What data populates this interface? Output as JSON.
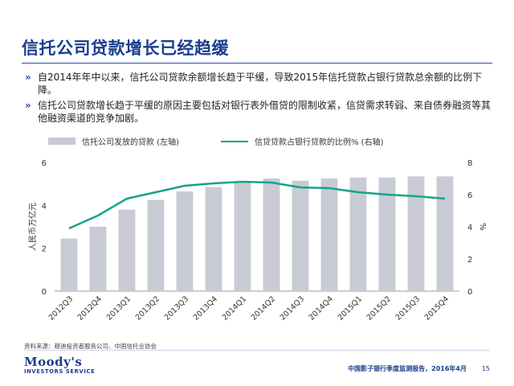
{
  "header": {
    "title": "信托公司贷款增长已经趋缓"
  },
  "bullets": [
    {
      "mark": "»",
      "text": "自2014年年中以来，信托公司贷款余额增长趋于平缓，导致2015年信托贷款占银行贷款总余额的比例下降。"
    },
    {
      "mark": "»",
      "text": "信托公司贷款增长趋于平缓的原因主要包括对银行表外借贷的限制收紧，信贷需求转弱、来自债券融资等其他融资渠道的竞争加剧。"
    }
  ],
  "legend": {
    "bar_label": "信托公司发放的贷款 (左轴)",
    "line_label": "信贷贷款占银行贷款的比例% (右轴)"
  },
  "chart_data": {
    "type": "bar+line",
    "categories": [
      "2012Q3",
      "2012Q4",
      "2013Q1",
      "2013Q2",
      "2013Q3",
      "2013Q4",
      "2014Q1",
      "2014Q2",
      "2014Q3",
      "2014Q4",
      "2015Q1",
      "2015Q2",
      "2015Q3",
      "2015Q4"
    ],
    "series": [
      {
        "name": "信托公司发放的贷款 (左轴)",
        "type": "bar",
        "axis": "left",
        "values": [
          2.45,
          3.0,
          3.8,
          4.25,
          4.65,
          4.85,
          5.1,
          5.25,
          5.15,
          5.25,
          5.3,
          5.3,
          5.35,
          5.35
        ]
      },
      {
        "name": "信贷贷款占银行贷款的比例% (右轴)",
        "type": "line",
        "axis": "right",
        "values": [
          3.9,
          4.7,
          5.75,
          6.15,
          6.55,
          6.7,
          6.8,
          6.75,
          6.45,
          6.4,
          6.15,
          6.0,
          5.9,
          5.75
        ]
      }
    ],
    "ylabel_left": "人民币万亿元",
    "ylabel_right": "%",
    "ylim_left": [
      0,
      6
    ],
    "ylim_right": [
      0,
      8
    ],
    "yticks_left": [
      "0",
      "2",
      "4",
      "6"
    ],
    "yticks_right": [
      "0",
      "2",
      "4",
      "6",
      "8"
    ],
    "colors": {
      "bar": "#c8cbd3",
      "line": "#16a38a"
    }
  },
  "source": "资料来源：穆迪投资者服务公司、中国信托业协会",
  "logo": {
    "main": "Moody's",
    "sub": "INVESTORS SERVICE"
  },
  "footer": {
    "report": "中国影子银行季度监测报告，2016年4月",
    "page": "15"
  }
}
